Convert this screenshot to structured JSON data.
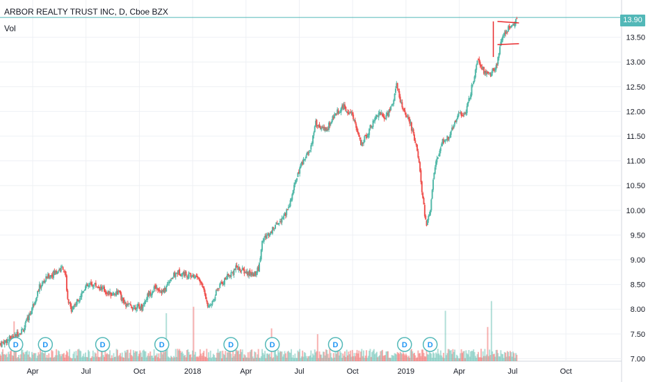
{
  "legend": {
    "title": "ARBOR REALTY TRUST INC, D, Cboe BZX",
    "volume_label": "Vol"
  },
  "last_price_label": "13.90",
  "dividend_marker_label": "D",
  "colors": {
    "up": "#53b9a9",
    "down": "#ef5350",
    "grid": "#eef0f4",
    "axis_text": "#131722",
    "last_price": "#52b8b8",
    "annotation": "#e8282b"
  },
  "chart_data": {
    "type": "candlestick",
    "title": "ARBOR REALTY TRUST INC, D, Cboe BZX",
    "y_axis": {
      "ticks": [
        "7.00",
        "7.50",
        "8.00",
        "8.50",
        "9.00",
        "9.50",
        "10.00",
        "10.50",
        "11.00",
        "11.50",
        "12.00",
        "12.50",
        "13.00",
        "13.50"
      ],
      "range": [
        6.95,
        14.0
      ],
      "grid": true,
      "position": "right"
    },
    "x_axis": {
      "labels": [
        "Apr",
        "Jul",
        "Oct",
        "2018",
        "Apr",
        "Jul",
        "Oct",
        "2019",
        "Apr",
        "Jul",
        "Oct"
      ],
      "range_months": [
        0,
        31.5
      ],
      "grid": true
    },
    "last_price": 13.9,
    "price_path": [
      {
        "m": 0.0,
        "p": 7.3
      },
      {
        "m": 0.7,
        "p": 7.45
      },
      {
        "m": 1.2,
        "p": 7.6
      },
      {
        "m": 1.6,
        "p": 8.0
      },
      {
        "m": 2.0,
        "p": 8.45
      },
      {
        "m": 2.4,
        "p": 8.65
      },
      {
        "m": 2.8,
        "p": 8.75
      },
      {
        "m": 3.2,
        "p": 8.85
      },
      {
        "m": 3.35,
        "p": 8.6
      },
      {
        "m": 3.4,
        "p": 8.2
      },
      {
        "m": 3.6,
        "p": 8.0
      },
      {
        "m": 3.9,
        "p": 8.15
      },
      {
        "m": 4.3,
        "p": 8.45
      },
      {
        "m": 4.8,
        "p": 8.5
      },
      {
        "m": 5.2,
        "p": 8.4
      },
      {
        "m": 5.6,
        "p": 8.3
      },
      {
        "m": 6.0,
        "p": 8.35
      },
      {
        "m": 6.3,
        "p": 8.1
      },
      {
        "m": 6.7,
        "p": 8.05
      },
      {
        "m": 7.2,
        "p": 8.05
      },
      {
        "m": 7.5,
        "p": 8.3
      },
      {
        "m": 7.9,
        "p": 8.45
      },
      {
        "m": 8.3,
        "p": 8.35
      },
      {
        "m": 8.6,
        "p": 8.6
      },
      {
        "m": 9.0,
        "p": 8.75
      },
      {
        "m": 9.5,
        "p": 8.7
      },
      {
        "m": 10.0,
        "p": 8.65
      },
      {
        "m": 10.3,
        "p": 8.45
      },
      {
        "m": 10.6,
        "p": 8.0
      },
      {
        "m": 11.0,
        "p": 8.4
      },
      {
        "m": 11.5,
        "p": 8.65
      },
      {
        "m": 12.0,
        "p": 8.85
      },
      {
        "m": 12.4,
        "p": 8.75
      },
      {
        "m": 12.8,
        "p": 8.7
      },
      {
        "m": 13.1,
        "p": 8.8
      },
      {
        "m": 13.3,
        "p": 9.4
      },
      {
        "m": 13.7,
        "p": 9.55
      },
      {
        "m": 14.2,
        "p": 9.8
      },
      {
        "m": 14.6,
        "p": 10.0
      },
      {
        "m": 15.0,
        "p": 10.6
      },
      {
        "m": 15.3,
        "p": 10.95
      },
      {
        "m": 15.7,
        "p": 11.2
      },
      {
        "m": 16.0,
        "p": 11.75
      },
      {
        "m": 16.5,
        "p": 11.6
      },
      {
        "m": 17.0,
        "p": 11.95
      },
      {
        "m": 17.4,
        "p": 12.1
      },
      {
        "m": 17.9,
        "p": 11.9
      },
      {
        "m": 18.3,
        "p": 11.3
      },
      {
        "m": 18.8,
        "p": 11.7
      },
      {
        "m": 19.2,
        "p": 12.0
      },
      {
        "m": 19.5,
        "p": 11.85
      },
      {
        "m": 19.9,
        "p": 12.15
      },
      {
        "m": 20.1,
        "p": 12.55
      },
      {
        "m": 20.4,
        "p": 12.05
      },
      {
        "m": 20.8,
        "p": 11.75
      },
      {
        "m": 21.2,
        "p": 11.1
      },
      {
        "m": 21.4,
        "p": 10.3
      },
      {
        "m": 21.6,
        "p": 9.7
      },
      {
        "m": 21.8,
        "p": 10.0
      },
      {
        "m": 22.0,
        "p": 10.8
      },
      {
        "m": 22.4,
        "p": 11.4
      },
      {
        "m": 22.8,
        "p": 11.5
      },
      {
        "m": 23.2,
        "p": 11.95
      },
      {
        "m": 23.6,
        "p": 11.95
      },
      {
        "m": 24.0,
        "p": 12.65
      },
      {
        "m": 24.2,
        "p": 13.1
      },
      {
        "m": 24.6,
        "p": 12.75
      },
      {
        "m": 25.0,
        "p": 12.8
      },
      {
        "m": 25.2,
        "p": 12.95
      },
      {
        "m": 25.4,
        "p": 13.5
      },
      {
        "m": 25.7,
        "p": 13.65
      },
      {
        "m": 26.0,
        "p": 13.75
      },
      {
        "m": 26.2,
        "p": 13.85
      }
    ],
    "dividend_markers_months": [
      0.8,
      2.3,
      5.2,
      8.2,
      11.7,
      13.8,
      17.0,
      20.5,
      21.8
    ],
    "annotation": {
      "start_month": 25.0,
      "top": 13.82,
      "bottom": 13.35
    }
  },
  "ui": {
    "chart_left": 0,
    "chart_right": 894,
    "plot_top": 18,
    "plot_bottom": 520
  }
}
